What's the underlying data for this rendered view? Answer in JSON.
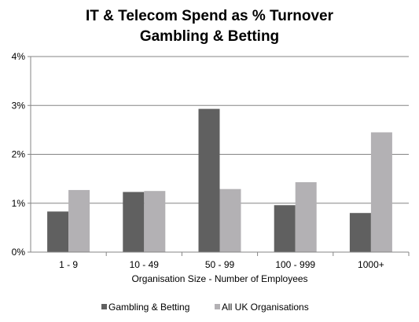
{
  "chart_data": {
    "type": "bar",
    "title": "IT & Telecom Spend as % Turnover",
    "subtitle": "Gambling & Betting",
    "xlabel": "Organisation Size - Number of Employees",
    "ylabel": "",
    "categories": [
      "1 - 9",
      "10 - 49",
      "50 - 99",
      "100 - 999",
      "1000+"
    ],
    "series": [
      {
        "name": "Gambling & Betting",
        "color": "#606060",
        "values": [
          0.83,
          1.23,
          2.93,
          0.96,
          0.8
        ]
      },
      {
        "name": "All UK Organisations",
        "color": "#b3b1b4",
        "values": [
          1.27,
          1.25,
          1.29,
          1.43,
          2.45
        ]
      }
    ],
    "ylim": [
      0,
      4
    ],
    "yticks": [
      0,
      1,
      2,
      3,
      4
    ],
    "ytick_labels": [
      "0%",
      "1%",
      "2%",
      "3%",
      "4%"
    ],
    "grid": true,
    "legend_position": "bottom"
  }
}
